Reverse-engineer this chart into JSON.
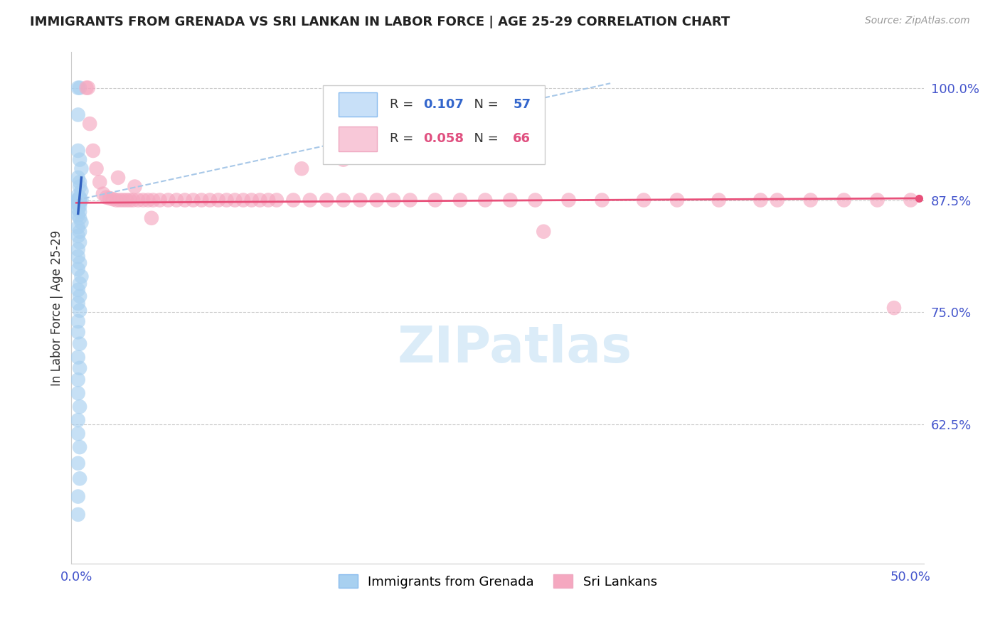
{
  "title": "IMMIGRANTS FROM GRENADA VS SRI LANKAN IN LABOR FORCE | AGE 25-29 CORRELATION CHART",
  "source": "Source: ZipAtlas.com",
  "ylabel": "In Labor Force | Age 25-29",
  "xlim": [
    -0.003,
    0.508
  ],
  "ylim": [
    0.47,
    1.04
  ],
  "xticks": [
    0.0,
    0.1,
    0.2,
    0.3,
    0.4,
    0.5
  ],
  "xticklabels": [
    "0.0%",
    "",
    "",
    "",
    "",
    "50.0%"
  ],
  "ytick_positions": [
    0.625,
    0.75,
    0.875,
    1.0
  ],
  "ytick_labels": [
    "62.5%",
    "75.0%",
    "87.5%",
    "100.0%"
  ],
  "legend_blue_Rval": "0.107",
  "legend_blue_Nval": "57",
  "legend_pink_Rval": "0.058",
  "legend_pink_Nval": "66",
  "blue_color": "#a8d0f0",
  "pink_color": "#f5a8c0",
  "blue_line_color": "#3060c0",
  "pink_line_color": "#e8507a",
  "diag_line_color": "#a8c8e8",
  "watermark_color": "#d8eaf8",
  "blue_scatter_x": [
    0.001,
    0.002,
    0.001,
    0.001,
    0.002,
    0.003,
    0.001,
    0.002,
    0.002,
    0.003,
    0.001,
    0.002,
    0.001,
    0.002,
    0.001,
    0.003,
    0.001,
    0.002,
    0.001,
    0.002,
    0.001,
    0.001,
    0.002,
    0.001,
    0.002,
    0.001,
    0.002,
    0.003,
    0.001,
    0.002,
    0.001,
    0.002,
    0.001,
    0.001,
    0.002,
    0.001,
    0.003,
    0.002,
    0.001,
    0.002,
    0.001,
    0.002,
    0.001,
    0.001,
    0.002,
    0.001,
    0.002,
    0.001,
    0.001,
    0.002,
    0.001,
    0.001,
    0.002,
    0.001,
    0.002,
    0.001,
    0.001
  ],
  "blue_scatter_y": [
    1.0,
    1.0,
    0.97,
    0.93,
    0.92,
    0.91,
    0.9,
    0.895,
    0.89,
    0.885,
    0.88,
    0.878,
    0.876,
    0.875,
    0.875,
    0.875,
    0.875,
    0.874,
    0.873,
    0.872,
    0.871,
    0.87,
    0.868,
    0.865,
    0.862,
    0.858,
    0.855,
    0.85,
    0.845,
    0.84,
    0.835,
    0.828,
    0.82,
    0.812,
    0.805,
    0.798,
    0.79,
    0.782,
    0.775,
    0.768,
    0.76,
    0.752,
    0.74,
    0.728,
    0.715,
    0.7,
    0.688,
    0.675,
    0.66,
    0.645,
    0.63,
    0.615,
    0.6,
    0.582,
    0.565,
    0.545,
    0.525
  ],
  "pink_scatter_x": [
    0.006,
    0.007,
    0.008,
    0.01,
    0.012,
    0.014,
    0.016,
    0.018,
    0.02,
    0.022,
    0.024,
    0.026,
    0.028,
    0.03,
    0.032,
    0.034,
    0.037,
    0.04,
    0.043,
    0.046,
    0.05,
    0.055,
    0.06,
    0.065,
    0.07,
    0.075,
    0.08,
    0.085,
    0.09,
    0.095,
    0.1,
    0.105,
    0.11,
    0.115,
    0.12,
    0.13,
    0.14,
    0.15,
    0.16,
    0.17,
    0.18,
    0.19,
    0.2,
    0.215,
    0.23,
    0.245,
    0.26,
    0.275,
    0.295,
    0.315,
    0.34,
    0.36,
    0.385,
    0.41,
    0.44,
    0.46,
    0.48,
    0.5,
    0.025,
    0.035,
    0.16,
    0.045,
    0.135,
    0.42,
    0.49,
    0.28
  ],
  "pink_scatter_y": [
    1.0,
    1.0,
    0.96,
    0.93,
    0.91,
    0.895,
    0.882,
    0.878,
    0.877,
    0.876,
    0.875,
    0.875,
    0.875,
    0.875,
    0.875,
    0.875,
    0.875,
    0.875,
    0.875,
    0.875,
    0.875,
    0.875,
    0.875,
    0.875,
    0.875,
    0.875,
    0.875,
    0.875,
    0.875,
    0.875,
    0.875,
    0.875,
    0.875,
    0.875,
    0.875,
    0.875,
    0.875,
    0.875,
    0.875,
    0.875,
    0.875,
    0.875,
    0.875,
    0.875,
    0.875,
    0.875,
    0.875,
    0.875,
    0.875,
    0.875,
    0.875,
    0.875,
    0.875,
    0.875,
    0.875,
    0.875,
    0.875,
    0.875,
    0.9,
    0.89,
    0.92,
    0.855,
    0.91,
    0.875,
    0.755,
    0.84
  ],
  "blue_trend_x": [
    0.001,
    0.003
  ],
  "blue_trend_y": [
    0.86,
    0.9
  ],
  "diag_trend_x": [
    0.0,
    0.32
  ],
  "diag_trend_y": [
    0.875,
    1.005
  ],
  "pink_trend_x": [
    0.0,
    0.505
  ],
  "pink_trend_y": [
    0.872,
    0.877
  ]
}
